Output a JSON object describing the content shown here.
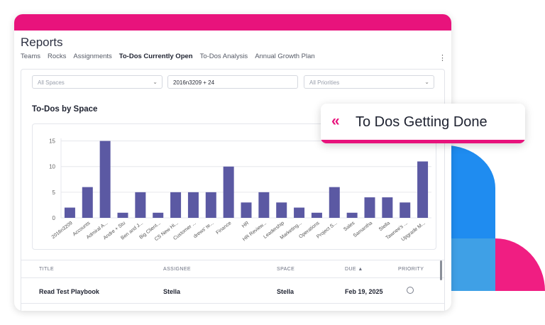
{
  "header": {
    "title": "Reports",
    "tabs": [
      "Teams",
      "Rocks",
      "Assignments",
      "To-Dos Currently Open",
      "To-Dos Analysis",
      "Annual Growth Plan"
    ],
    "active_tab": "To-Dos Currently Open",
    "menu_icon": "kebab-icon"
  },
  "filters": {
    "spaces_placeholder": "All Spaces",
    "search_value": "2016n3209 + 24",
    "priorities_placeholder": "All Priorities"
  },
  "section_title": "To-Dos by Space",
  "chart_data": {
    "type": "bar",
    "categories": [
      "2016n3209",
      "Accounts",
      "Admiral A...",
      "Andre + Stu",
      "Ben and J...",
      "Big Client...",
      "CS New Hi...",
      "Customer ...",
      "drews' te...",
      "Finance",
      "HR",
      "HR Review...",
      "Leadership",
      "Marketing...",
      "Operations",
      "Project S...",
      "Sales",
      "Samantha",
      "Stella",
      "Tawnee's ...",
      "Upgrade M..."
    ],
    "values": [
      2,
      6,
      15,
      1,
      5,
      1,
      5,
      5,
      5,
      10,
      3,
      5,
      3,
      2,
      1,
      6,
      1,
      4,
      4,
      3,
      11
    ],
    "yticks": [
      0,
      5,
      10,
      15
    ],
    "ylim": [
      0,
      16
    ],
    "color": "#5b59a3",
    "grid": true
  },
  "table": {
    "columns": [
      "TITLE",
      "ASSIGNEE",
      "SPACE",
      "DUE ▲",
      "PRIORITY"
    ],
    "rows": [
      {
        "title": "Read Test Playbook",
        "assignee": "Stella",
        "space": "Stella",
        "due": "Feb 19, 2025"
      }
    ]
  },
  "callout": {
    "arrows": "«",
    "text": "To Dos Getting Done"
  },
  "colors": {
    "brand_pink": "#e8137c",
    "bar": "#5b59a3",
    "deco_blue": "#1f8cf0"
  }
}
